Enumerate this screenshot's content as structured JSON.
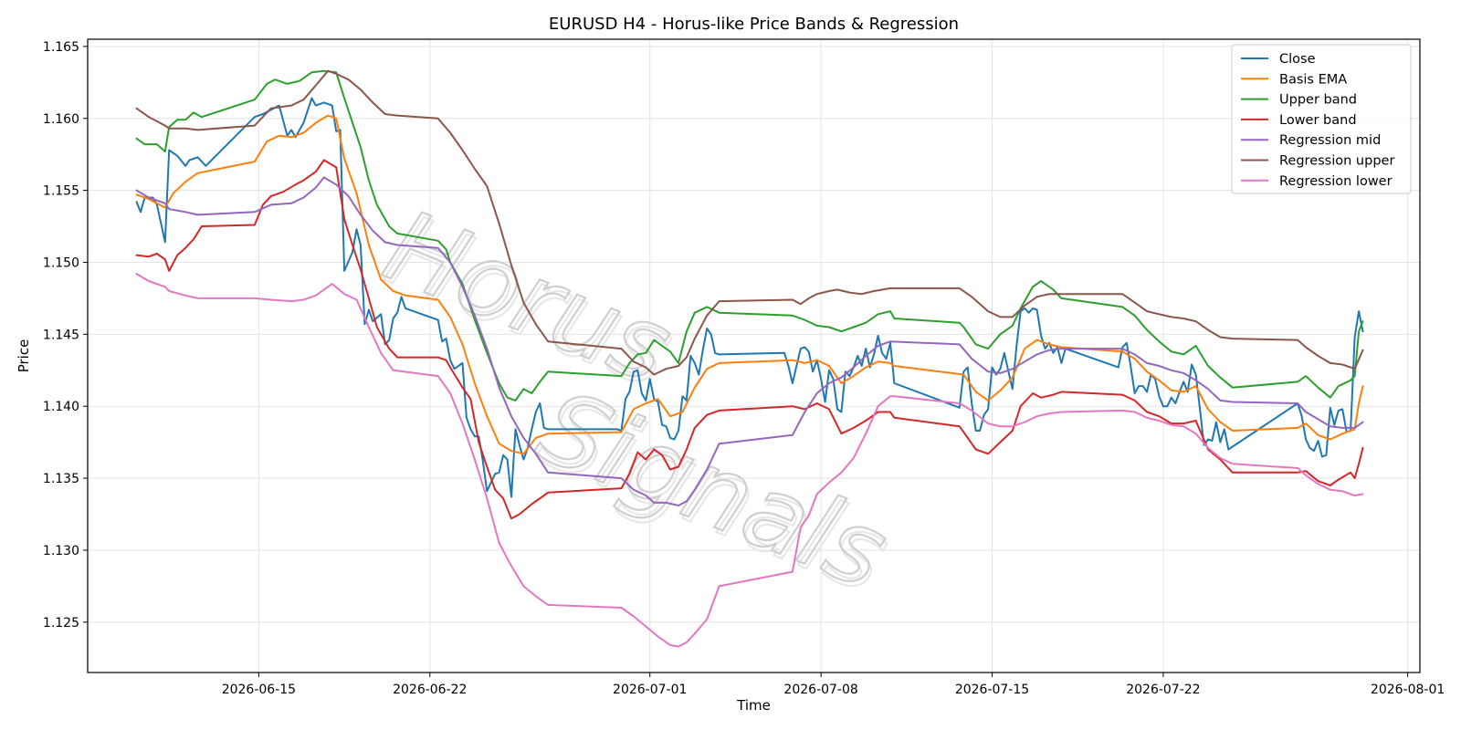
{
  "chart_data": {
    "type": "line",
    "title": "EURUSD H4 - Horus-like Price Bands & Regression",
    "xlabel": "Time",
    "ylabel": "Price",
    "xlim": [
      "2026-06-09T00:00",
      "2026-08-01T16:00"
    ],
    "ylim": [
      1.1215,
      1.1655
    ],
    "x_ticks": [
      "2026-06-15",
      "2026-06-22",
      "2026-07-01",
      "2026-07-08",
      "2026-07-15",
      "2026-07-22",
      "2026-08-01"
    ],
    "y_ticks": [
      "1.125",
      "1.130",
      "1.135",
      "1.140",
      "1.145",
      "1.150",
      "1.155",
      "1.160",
      "1.165"
    ],
    "grid": true,
    "legend_position": "top-right",
    "watermark": "Horus Signals",
    "series": [
      {
        "name": "Close",
        "color": "#1f77b4",
        "points": [
          [
            "2026-06-11T00:00",
            1.1542
          ],
          [
            "2026-06-11T08:00",
            1.1535
          ],
          [
            "2026-06-11T16:00",
            1.1545
          ],
          [
            "2026-06-12T04:00",
            1.154
          ],
          [
            "2026-06-12T08:00",
            1.1514
          ],
          [
            "2026-06-12T12:00",
            1.1578
          ],
          [
            "2026-06-13T04:00",
            1.1567
          ],
          [
            "2026-06-13T16:00",
            1.1573
          ],
          [
            "2026-06-14T04:00",
            1.1567
          ],
          [
            "2026-06-15T00:00",
            1.16
          ],
          [
            "2026-06-15T16:00",
            1.1608
          ],
          [
            "2026-06-16T04:00",
            1.1587
          ],
          [
            "2026-06-16T16:00",
            1.1593
          ],
          [
            "2026-06-17T04:00",
            1.1613
          ],
          [
            "2026-06-17T16:00",
            1.161
          ],
          [
            "2026-06-18T04:00",
            1.1608
          ],
          [
            "2026-06-18T08:00",
            1.1591
          ],
          [
            "2026-06-18T16:00",
            1.1494
          ],
          [
            "2026-06-19T04:00",
            1.1523
          ],
          [
            "2026-06-19T16:00",
            1.1457
          ],
          [
            "2026-06-20T04:00",
            1.1464
          ],
          [
            "2026-06-20T12:00",
            1.1443
          ],
          [
            "2026-06-21T00:00",
            1.1476
          ],
          [
            "2026-06-21T12:00",
            1.1469
          ],
          [
            "2026-06-24T00:00",
            1.146
          ],
          [
            "2026-06-24T16:00",
            1.1447
          ],
          [
            "2026-06-25T00:00",
            1.1432
          ],
          [
            "2026-06-25T16:00",
            1.143
          ],
          [
            "2026-06-26T04:00",
            1.1384
          ],
          [
            "2026-06-26T16:00",
            1.1378
          ],
          [
            "2026-06-27T04:00",
            1.134
          ],
          [
            "2026-06-27T16:00",
            1.1355
          ],
          [
            "2026-06-28T04:00",
            1.1365
          ],
          [
            "2026-06-28T12:00",
            1.1337
          ],
          [
            "2026-06-28T20:00",
            1.1383
          ],
          [
            "2026-06-29T08:00",
            1.1362
          ],
          [
            "2026-06-29T20:00",
            1.1385
          ],
          [
            "2026-06-30T04:00",
            1.1402
          ],
          [
            "2026-06-30T12:00",
            1.1385
          ],
          [
            "2026-07-03T00:00",
            1.1384
          ],
          [
            "2026-07-03T12:00",
            1.1408
          ],
          [
            "2026-07-03T20:00",
            1.1425
          ],
          [
            "2026-07-04T04:00",
            1.1405
          ],
          [
            "2026-07-04T16:00",
            1.142
          ],
          [
            "2026-07-05T04:00",
            1.14
          ],
          [
            "2026-07-05T16:00",
            1.1385
          ],
          [
            "2026-07-06T04:00",
            1.1378
          ],
          [
            "2026-07-06T16:00",
            1.1404
          ],
          [
            "2026-07-07T04:00",
            1.1431
          ],
          [
            "2026-07-07T16:00",
            1.1425
          ],
          [
            "2026-07-08T04:00",
            1.1452
          ],
          [
            "2026-07-08T16:00",
            1.1437
          ],
          [
            "2026-07-11T00:00",
            1.1436
          ],
          [
            "2026-07-11T08:00",
            1.1427
          ],
          [
            "2026-07-11T16:00",
            1.1415
          ],
          [
            "2026-07-12T04:00",
            1.144
          ],
          [
            "2026-07-12T16:00",
            1.1428
          ],
          [
            "2026-07-13T04:00",
            1.1425
          ],
          [
            "2026-07-13T16:00",
            1.1405
          ],
          [
            "2026-07-14T04:00",
            1.1423
          ],
          [
            "2026-07-14T16:00",
            1.1398
          ],
          [
            "2026-07-15T04:00",
            1.1425
          ],
          [
            "2026-07-15T16:00",
            1.1435
          ],
          [
            "2026-07-16T04:00",
            1.1428
          ],
          [
            "2026-07-16T16:00",
            1.1449
          ],
          [
            "2026-07-17T04:00",
            1.143
          ],
          [
            "2026-07-17T16:00",
            1.144
          ],
          [
            "2026-07-20T00:00",
            1.1415
          ],
          [
            "2026-07-20T08:00",
            1.1398
          ],
          [
            "2026-07-20T16:00",
            1.1427
          ],
          [
            "2026-07-21T04:00",
            1.1383
          ],
          [
            "2026-07-21T16:00",
            1.1399
          ],
          [
            "2026-07-22T04:00",
            1.1425
          ],
          [
            "2026-07-22T16:00",
            1.143
          ],
          [
            "2026-07-23T04:00",
            1.1437
          ],
          [
            "2026-07-23T16:00",
            1.1412
          ],
          [
            "2026-07-24T04:00",
            1.1465
          ],
          [
            "2026-07-24T16:00",
            1.1468
          ],
          [
            "2026-07-25T04:00",
            1.144
          ],
          [
            "2026-07-25T16:00",
            1.1444
          ],
          [
            "2026-07-26T04:00",
            1.143
          ],
          [
            "2026-07-26T16:00",
            1.144
          ],
          [
            "2026-07-29T00:00",
            1.1435
          ],
          [
            "2026-07-29T12:00",
            1.1444
          ],
          [
            "2026-07-30T00:00",
            1.1412
          ],
          [
            "2026-07-30T12:00",
            1.1417
          ],
          [
            "2026-07-31T00:00",
            1.1409
          ],
          [
            "2026-07-31T12:00",
            1.1422
          ],
          [
            "2026-08-01T00:00",
            1.1404
          ],
          [
            "2026-08-01T08:00",
            1.1427
          ],
          [
            "2026-08-01T12:00",
            1.141
          ],
          [
            "2026-08-01T16:00",
            1.1426
          ],
          [
            "2026-07-29T00:00",
            1.1435
          ]
        ]
      }
    ]
  }
}
